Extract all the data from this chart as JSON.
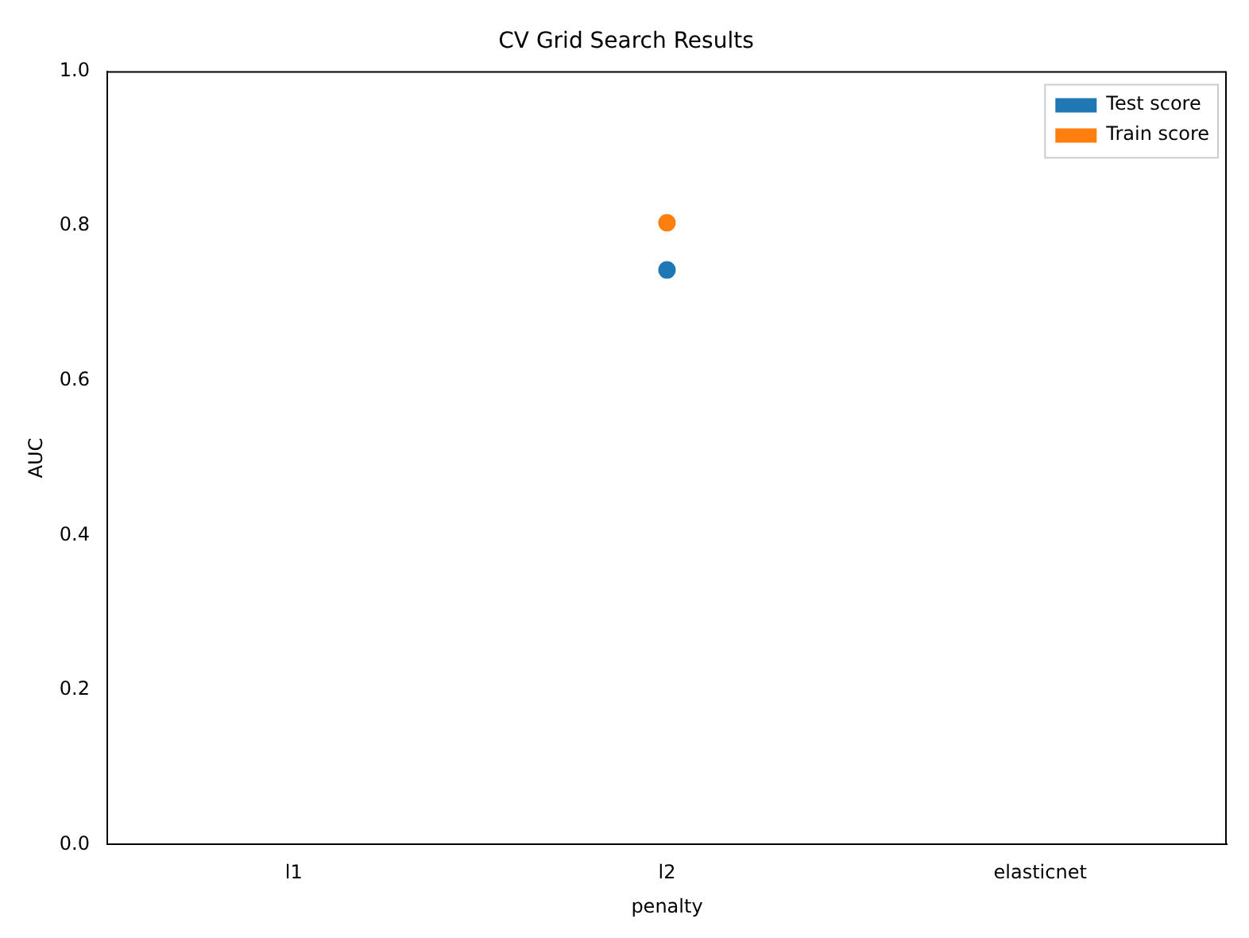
{
  "chart_data": {
    "type": "scatter",
    "title": "CV Grid Search Results",
    "xlabel": "penalty",
    "ylabel": "AUC",
    "categories": [
      "l1",
      "l2",
      "elasticnet"
    ],
    "series": [
      {
        "name": "Test score",
        "color": "#1f77b4",
        "values": [
          null,
          0.743,
          null
        ]
      },
      {
        "name": "Train score",
        "color": "#ff7f0e",
        "values": [
          null,
          0.804,
          null
        ]
      }
    ],
    "ylim": [
      0,
      1
    ],
    "yticks": [
      {
        "value": 0,
        "label": "0.0"
      },
      0.2,
      0.4,
      0.6,
      0.8,
      {
        "value": 1,
        "label": "1.0"
      }
    ],
    "grid": false,
    "legend": "top right",
    "marker": "circle"
  }
}
